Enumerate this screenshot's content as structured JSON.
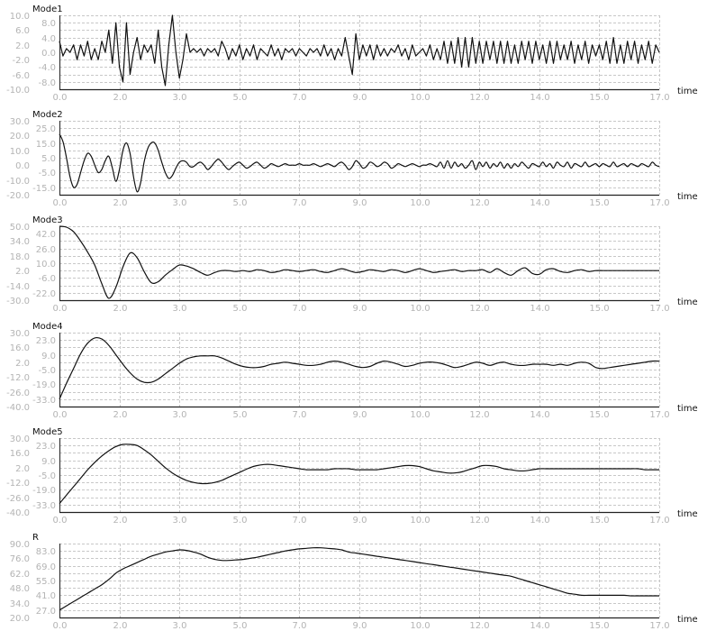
{
  "chart_data": [
    {
      "type": "line",
      "title": "Mode1",
      "xlabel": "time",
      "xlim": [
        0,
        17
      ],
      "ylim": [
        -10,
        10
      ],
      "grid": true,
      "x_ticks": [
        0,
        1.7,
        3.4,
        5.1,
        6.8,
        8.5,
        10.2,
        11.9,
        13.6,
        15.3,
        17
      ],
      "x_tick_labels": [
        "0.0",
        "2.0",
        "3.0",
        "5.0",
        "7.0",
        "9.0",
        "10.0",
        "12.0",
        "14.0",
        "15.0",
        "17.0"
      ],
      "y_ticks": [
        10,
        8,
        6,
        4,
        2,
        0,
        -2,
        -4,
        -6,
        -8,
        -10
      ],
      "y_tick_labels": [
        "10.0",
        "8.0",
        "6.0",
        "4.0",
        "2.0",
        "0.0",
        "-2.0",
        "-4.0",
        "-6.0",
        "-8.0",
        "-10.0"
      ],
      "x_start": 0,
      "x_step": 0.1,
      "smooth": false,
      "values": [
        3,
        -1,
        1,
        0,
        2,
        -2,
        2,
        -1,
        3,
        -2,
        1,
        -2,
        3,
        0,
        6,
        -3,
        8,
        -4,
        -8,
        8,
        -6,
        0,
        4,
        -2,
        2,
        0,
        2,
        -3,
        6,
        -4,
        -9,
        2,
        10,
        0,
        -7,
        -2,
        5,
        0,
        1,
        0,
        1,
        -1,
        1,
        0,
        1,
        -1,
        3,
        1,
        -2,
        1,
        -1,
        2,
        -2,
        1,
        -1,
        2,
        -2,
        1,
        0,
        -1,
        2,
        -1,
        1,
        -2,
        1,
        0,
        1,
        -1,
        1,
        0,
        -1,
        1,
        0,
        1,
        -1,
        2,
        -1,
        1,
        -2,
        1,
        -1,
        4,
        -1,
        -6,
        5,
        -2,
        2,
        -1,
        2,
        -2,
        2,
        -1,
        1,
        -1,
        1,
        0,
        2,
        -1,
        1,
        -2,
        2,
        -1,
        0,
        1,
        -1,
        2,
        -2,
        1,
        -2,
        3,
        -3,
        3,
        -3,
        4,
        -4,
        4,
        -4,
        4,
        -3,
        3,
        -3,
        3,
        -2,
        3,
        -3,
        3,
        -3,
        3,
        -3,
        2,
        -3,
        3,
        -2,
        3,
        -3,
        3,
        -2,
        2,
        -3,
        3,
        -3,
        3,
        -2,
        2,
        -2,
        3,
        -3,
        2,
        -2,
        3,
        -3,
        2,
        -1,
        2,
        -2,
        3,
        -3,
        4,
        -3,
        2,
        -3,
        3,
        -2,
        3,
        -3,
        2,
        -2,
        3,
        -3,
        2,
        0
      ]
    },
    {
      "type": "line",
      "title": "Mode2",
      "xlabel": "time",
      "xlim": [
        0,
        17
      ],
      "ylim": [
        -20,
        30
      ],
      "grid": true,
      "x_ticks": [
        0,
        1.7,
        3.4,
        5.1,
        6.8,
        8.5,
        10.2,
        11.9,
        13.6,
        15.3,
        17
      ],
      "x_tick_labels": [
        "0.0",
        "2.0",
        "3.0",
        "5.0",
        "7.0",
        "9.0",
        "10.0",
        "12.0",
        "14.0",
        "15.0",
        "17.0"
      ],
      "y_ticks": [
        30,
        25,
        20,
        15,
        10,
        5,
        0,
        -5,
        -10,
        -15,
        -20
      ],
      "y_tick_labels": [
        "30.0",
        "25.0",
        "20.0",
        "15.0",
        "10.0",
        "5.0",
        "0.0",
        "-5.0",
        "-10.0",
        "-15.0",
        "-20.0"
      ],
      "x_start": 0,
      "x_step": 0.1,
      "smooth": true,
      "values": [
        21,
        16,
        5,
        -8,
        -15,
        -13,
        -5,
        3,
        8,
        6,
        0,
        -5,
        -3,
        3,
        6,
        -2,
        -11,
        -3,
        10,
        15,
        8,
        -8,
        -18,
        -12,
        2,
        11,
        15,
        15,
        10,
        2,
        -5,
        -9,
        -7,
        -2,
        2,
        3,
        2,
        -1,
        -1,
        1,
        2,
        0,
        -3,
        -1,
        2,
        4,
        2,
        -1,
        -3,
        -1,
        1,
        2,
        0,
        -2,
        -1,
        1,
        2,
        0,
        -2,
        -1,
        1,
        0,
        -1,
        0,
        1,
        0,
        0,
        0,
        1,
        0,
        0,
        0,
        1,
        0,
        -1,
        0,
        1,
        0,
        -1,
        1,
        2,
        0,
        -3,
        -1,
        3,
        1,
        -2,
        -1,
        2,
        1,
        -1,
        0,
        2,
        1,
        -2,
        -1,
        1,
        0,
        -1,
        0,
        1,
        0,
        -1,
        0,
        0,
        1,
        0,
        -1,
        2,
        -2,
        3,
        -2,
        2,
        -1,
        1,
        -2,
        0,
        3,
        -3,
        2,
        -1,
        2,
        -2,
        1,
        -1,
        2,
        -2,
        1,
        -2,
        1,
        -1,
        2,
        0,
        -2,
        1,
        0,
        -1,
        2,
        -1,
        1,
        -2,
        2,
        0,
        -1,
        2,
        -2,
        1,
        0,
        -1,
        2,
        -1,
        0,
        1,
        -1,
        1,
        0,
        -1,
        2,
        -1,
        0,
        1,
        -1,
        1,
        0,
        -1,
        1,
        0,
        -1,
        2,
        0,
        -1
      ]
    },
    {
      "type": "line",
      "title": "Mode3",
      "xlabel": "time",
      "xlim": [
        0,
        17
      ],
      "ylim": [
        -30,
        50
      ],
      "grid": true,
      "x_ticks": [
        0,
        1.7,
        3.4,
        5.1,
        6.8,
        8.5,
        10.2,
        11.9,
        13.6,
        15.3,
        17
      ],
      "x_tick_labels": [
        "0.0",
        "2.0",
        "3.0",
        "5.0",
        "7.0",
        "9.0",
        "10.0",
        "12.0",
        "14.0",
        "15.0",
        "17.0"
      ],
      "y_ticks": [
        50,
        42,
        34,
        26,
        18,
        10,
        2,
        -6,
        -14,
        -22,
        -30
      ],
      "y_tick_labels": [
        "50.0",
        "42.0",
        "34.0",
        "26.0",
        "18.0",
        "10.0",
        "2.0",
        "-6.0",
        "-14.0",
        "-22.0",
        "-30.0"
      ],
      "x_start": 0,
      "x_step": 0.2,
      "smooth": true,
      "values": [
        50,
        49,
        44,
        34,
        22,
        8,
        -12,
        -28,
        -16,
        6,
        21,
        16,
        1,
        -11,
        -10,
        -3,
        3,
        8,
        7,
        4,
        0,
        -3,
        0,
        2,
        2,
        1,
        2,
        1,
        3,
        2,
        0,
        1,
        3,
        2,
        1,
        2,
        3,
        1,
        0,
        2,
        4,
        2,
        0,
        1,
        3,
        2,
        1,
        3,
        2,
        0,
        2,
        4,
        2,
        0,
        1,
        2,
        3,
        1,
        2,
        2,
        3,
        0,
        4,
        0,
        -3,
        2,
        5,
        -1,
        -2,
        3,
        4,
        1,
        0,
        2,
        3,
        1,
        2,
        2,
        2,
        2,
        2,
        2,
        2,
        2,
        2,
        2
      ]
    },
    {
      "type": "line",
      "title": "Mode4",
      "xlabel": "time",
      "xlim": [
        0,
        17
      ],
      "ylim": [
        -40,
        30
      ],
      "grid": true,
      "x_ticks": [
        0,
        1.7,
        3.4,
        5.1,
        6.8,
        8.5,
        10.2,
        11.9,
        13.6,
        15.3,
        17
      ],
      "x_tick_labels": [
        "0.0",
        "2.0",
        "3.0",
        "5.0",
        "7.0",
        "9.0",
        "10.0",
        "12.0",
        "14.0",
        "15.0",
        "17.0"
      ],
      "y_ticks": [
        30,
        23,
        16,
        9,
        2,
        -5,
        -12,
        -19,
        -26,
        -33,
        -40
      ],
      "y_tick_labels": [
        "30.0",
        "23.0",
        "16.0",
        "9.0",
        "2.0",
        "-5.0",
        "-12.0",
        "-19.0",
        "-26.0",
        "-33.0",
        "-40.0"
      ],
      "x_start": 0,
      "x_step": 0.2,
      "smooth": true,
      "values": [
        -33,
        -18,
        -4,
        10,
        20,
        25,
        24,
        18,
        9,
        0,
        -8,
        -14,
        -17,
        -17,
        -14,
        -9,
        -4,
        1,
        5,
        7,
        8,
        8,
        8,
        6,
        3,
        0,
        -2,
        -3,
        -3,
        -2,
        0,
        1,
        2,
        1,
        0,
        -1,
        -1,
        0,
        2,
        3,
        2,
        0,
        -2,
        -3,
        -2,
        1,
        3,
        2,
        0,
        -2,
        -1,
        1,
        2,
        2,
        1,
        -1,
        -3,
        -2,
        0,
        2,
        1,
        -1,
        1,
        2,
        0,
        -1,
        -1,
        0,
        0,
        0,
        -1,
        0,
        -1,
        1,
        2,
        1,
        -3,
        -4,
        -3,
        -2,
        -1,
        0,
        1,
        2,
        3,
        3
      ]
    },
    {
      "type": "line",
      "title": "Mode5",
      "xlabel": "time",
      "xlim": [
        0,
        17
      ],
      "ylim": [
        -40,
        30
      ],
      "grid": true,
      "x_ticks": [
        0,
        1.7,
        3.4,
        5.1,
        6.8,
        8.5,
        10.2,
        11.9,
        13.6,
        15.3,
        17
      ],
      "x_tick_labels": [
        "0.0",
        "2.0",
        "3.0",
        "5.0",
        "7.0",
        "9.0",
        "10.0",
        "12.0",
        "14.0",
        "15.0",
        "17.0"
      ],
      "y_ticks": [
        30,
        23,
        16,
        9,
        2,
        -5,
        -12,
        -19,
        -26,
        -33,
        -40
      ],
      "y_tick_labels": [
        "30.0",
        "23.0",
        "16.0",
        "9.0",
        "2.0",
        "-5.0",
        "-12.0",
        "-19.0",
        "-26.0",
        "-33.0",
        "-40.0"
      ],
      "x_start": 0,
      "x_step": 0.2,
      "smooth": true,
      "values": [
        -32,
        -24,
        -16,
        -8,
        0,
        7,
        13,
        18,
        22,
        24,
        24,
        23,
        19,
        14,
        8,
        2,
        -3,
        -7,
        -10,
        -12,
        -13,
        -13,
        -12,
        -10,
        -7,
        -4,
        -1,
        2,
        4,
        5,
        5,
        4,
        3,
        2,
        1,
        0,
        0,
        0,
        0,
        1,
        1,
        1,
        0,
        0,
        0,
        0,
        1,
        2,
        3,
        4,
        4,
        3,
        1,
        -1,
        -2,
        -3,
        -3,
        -2,
        0,
        2,
        4,
        4,
        3,
        1,
        0,
        -1,
        -1,
        0,
        1,
        1,
        1,
        1,
        1,
        1,
        1,
        1,
        1,
        1,
        1,
        1,
        1,
        1,
        1,
        0,
        0,
        0
      ]
    },
    {
      "type": "line",
      "title": "R",
      "xlabel": "time",
      "xlim": [
        0,
        17
      ],
      "ylim": [
        20,
        90
      ],
      "grid": true,
      "x_ticks": [
        0,
        1.7,
        3.4,
        5.1,
        6.8,
        8.5,
        10.2,
        11.9,
        13.6,
        15.3,
        17
      ],
      "x_tick_labels": [
        "0.0",
        "2.0",
        "3.0",
        "5.0",
        "7.0",
        "9.0",
        "10.0",
        "12.0",
        "14.0",
        "15.0",
        "17.0"
      ],
      "y_ticks": [
        90,
        83,
        76,
        69,
        62,
        55,
        48,
        41,
        34,
        27,
        20
      ],
      "y_tick_labels": [
        "90.0",
        "83.0",
        "76.0",
        "69.0",
        "62.0",
        "55.0",
        "48.0",
        "41.0",
        "34.0",
        "27.0",
        "20.0"
      ],
      "x_start": 0,
      "x_step": 0.2,
      "smooth": true,
      "values": [
        27,
        31,
        35,
        39,
        43,
        47,
        51,
        56,
        62,
        66,
        69,
        72,
        75,
        78,
        80,
        82,
        83,
        84,
        83.5,
        82,
        80,
        77,
        75,
        74,
        74,
        74.5,
        75,
        76,
        77,
        78.5,
        80,
        81.5,
        83,
        84,
        85,
        85.5,
        86,
        86,
        85.5,
        85,
        84,
        82,
        81,
        80,
        79,
        78,
        77,
        76,
        75,
        74,
        73,
        72,
        71,
        70,
        69,
        68,
        67,
        66,
        65,
        64,
        63,
        62,
        61,
        60,
        59,
        57,
        55,
        53,
        51,
        49,
        47,
        45,
        43,
        42,
        41,
        41,
        41,
        41,
        41,
        41,
        41,
        40.5,
        40.5,
        40.5,
        40.5,
        40.5
      ]
    }
  ],
  "colors": {
    "line": "#111111",
    "axis": "#222222",
    "grid": "#c8c8c8",
    "tick_text": "#b4b4b4"
  }
}
